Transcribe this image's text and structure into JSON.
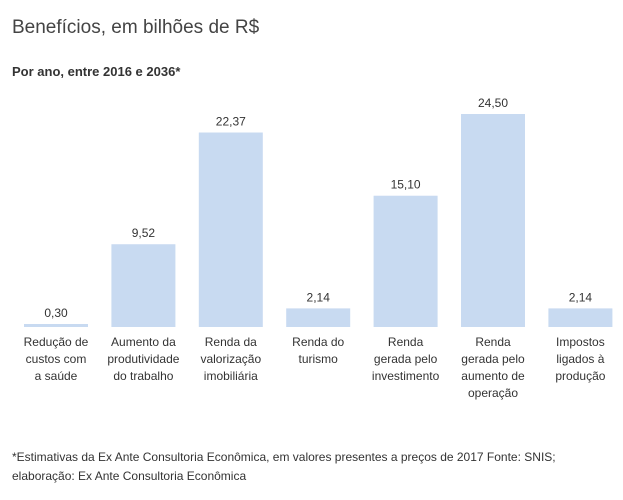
{
  "header": {
    "title": "Benefícios, em bilhões de R$",
    "subtitle": "Por ano, entre 2016 e 2036*"
  },
  "footnote": {
    "line1": "*Estimativas da Ex Ante Consultoria Econômica, em valores presentes a preços de 2017 Fonte: SNIS;",
    "line2": "elaboração: Ex Ante Consultoria Econômica"
  },
  "colors": {
    "bar": "#c8daf1",
    "text": "#333333"
  },
  "chart_data": {
    "type": "bar",
    "title": "Benefícios, em bilhões de R$",
    "subtitle": "Por ano, entre 2016 e 2036*",
    "categories": [
      [
        "Redução de",
        "custos com",
        "a saúde"
      ],
      [
        "Aumento da",
        "produtividade",
        "do trabalho"
      ],
      [
        "Renda da",
        "valorização",
        "imobiliária"
      ],
      [
        "Renda do",
        "turismo"
      ],
      [
        "Renda",
        "gerada pelo",
        "investimento"
      ],
      [
        "Renda",
        "gerada pelo",
        "aumento de",
        "operação"
      ],
      [
        "Impostos",
        "ligados à",
        "produção"
      ]
    ],
    "values": [
      0.3,
      9.52,
      22.37,
      2.14,
      15.1,
      24.5,
      2.14
    ],
    "value_labels": [
      "0,30",
      "9,52",
      "22,37",
      "2,14",
      "15,10",
      "24,50",
      "2,14"
    ],
    "ylim": [
      0,
      24.5
    ],
    "grid": false,
    "legend": "none",
    "xlabel": "",
    "ylabel": ""
  }
}
